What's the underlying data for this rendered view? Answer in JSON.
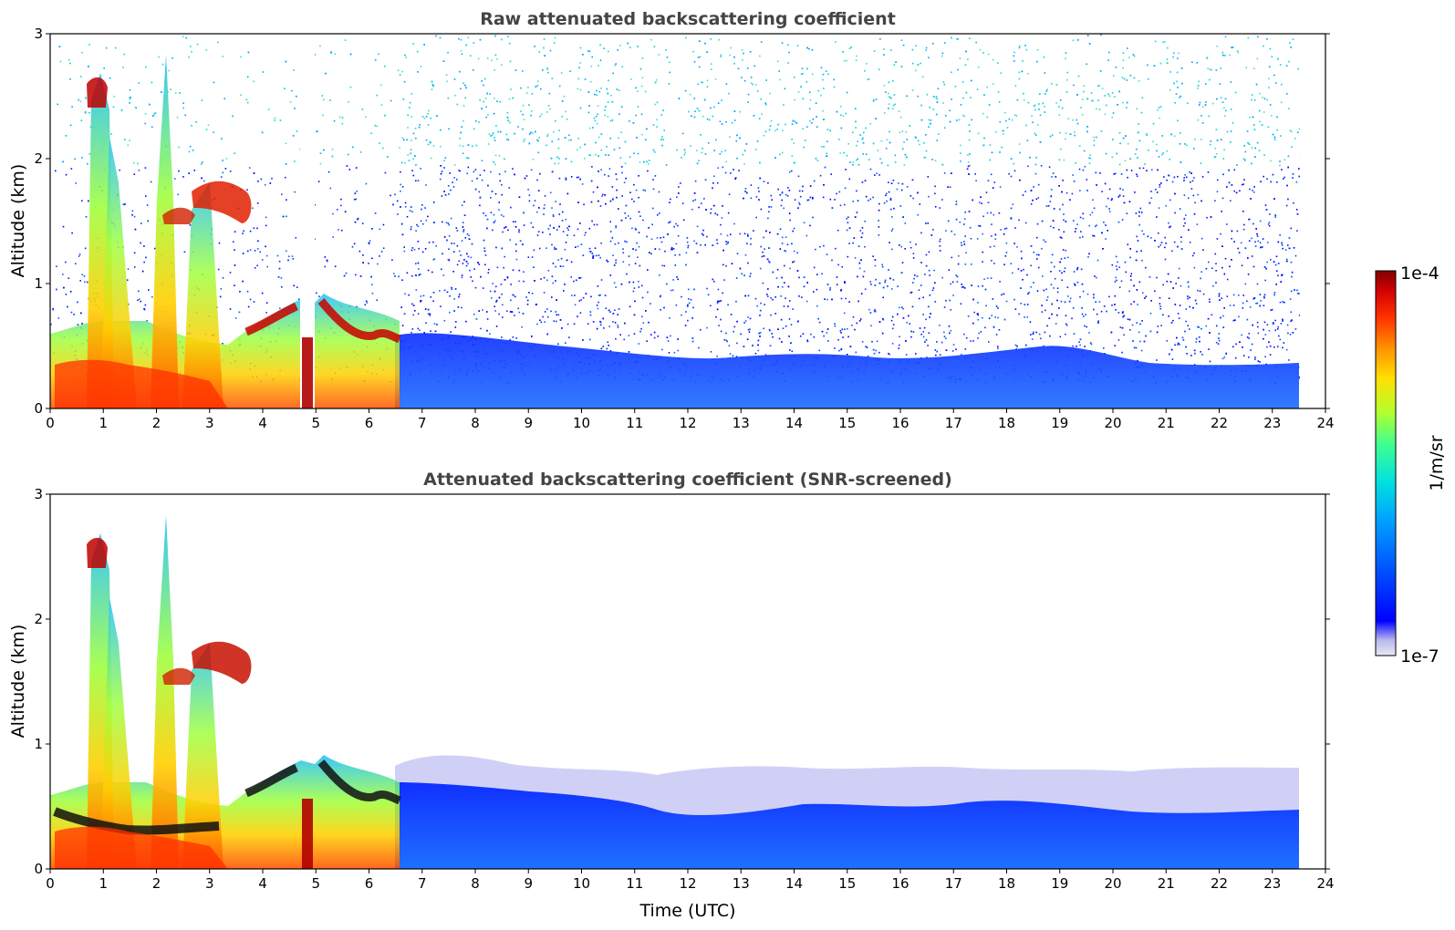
{
  "chart_data": [
    {
      "type": "heatmap",
      "title": "Raw attenuated backscattering coefficient",
      "xlabel": "",
      "ylabel": "Altitude (km)",
      "xlim": [
        0,
        24
      ],
      "ylim": [
        0,
        3
      ],
      "xticks": [
        "0",
        "1",
        "2",
        "3",
        "4",
        "5",
        "6",
        "7",
        "8",
        "9",
        "10",
        "11",
        "12",
        "13",
        "14",
        "15",
        "16",
        "17",
        "18",
        "19",
        "20",
        "21",
        "22",
        "23",
        "24"
      ],
      "yticks": [
        "0",
        "1",
        "2",
        "3"
      ],
      "data_extent_hours": [
        0,
        23.55
      ],
      "features": [
        {
          "label": "boundary layer",
          "time_range": [
            7,
            23.5
          ],
          "top_km_approx": 0.55
        },
        {
          "label": "cloud layer",
          "time_range": [
            2.1,
            3.8
          ],
          "altitude_km_approx": 1.7
        },
        {
          "label": "cloud layer",
          "time_range": [
            0.7,
            1.0
          ],
          "altitude_km_approx": 2.55
        },
        {
          "label": "aerosol layer",
          "time_range": [
            3.8,
            6.6
          ],
          "altitude_km_approx": 0.6
        },
        {
          "label": "data gap",
          "time_range": [
            4.75,
            5.0
          ]
        }
      ],
      "noise": true
    },
    {
      "type": "heatmap",
      "title": "Attenuated backscattering coefficient (SNR-screened)",
      "xlabel": "Time (UTC)",
      "ylabel": "Altitude (km)",
      "xlim": [
        0,
        24
      ],
      "ylim": [
        0,
        3
      ],
      "xticks": [
        "0",
        "1",
        "2",
        "3",
        "4",
        "5",
        "6",
        "7",
        "8",
        "9",
        "10",
        "11",
        "12",
        "13",
        "14",
        "15",
        "16",
        "17",
        "18",
        "19",
        "20",
        "21",
        "22",
        "23",
        "24"
      ],
      "yticks": [
        "0",
        "1",
        "2",
        "3"
      ],
      "data_extent_hours": [
        0,
        23.55
      ],
      "features": [
        {
          "label": "boundary layer",
          "time_range": [
            7,
            23.5
          ],
          "top_km_approx": 0.75
        },
        {
          "label": "cloud layer",
          "time_range": [
            2.1,
            3.8
          ],
          "altitude_km_approx": 1.7
        },
        {
          "label": "cloud layer",
          "time_range": [
            0.7,
            1.0
          ],
          "altitude_km_approx": 2.55
        },
        {
          "label": "aerosol layer",
          "time_range": [
            3.8,
            6.6
          ],
          "altitude_km_approx": 0.6
        }
      ],
      "noise": false
    }
  ],
  "colorbar": {
    "label": "1/m/sr",
    "max_label": "1e-4",
    "min_label": "1e-7",
    "colormap": [
      "#e8e8f4",
      "#b8b8ee",
      "#0000ff",
      "#0050ff",
      "#00a0ff",
      "#00e0e0",
      "#40ff90",
      "#b0ff30",
      "#ffe000",
      "#ff9000",
      "#ff3000",
      "#d00000",
      "#800000"
    ],
    "scale": "log"
  }
}
